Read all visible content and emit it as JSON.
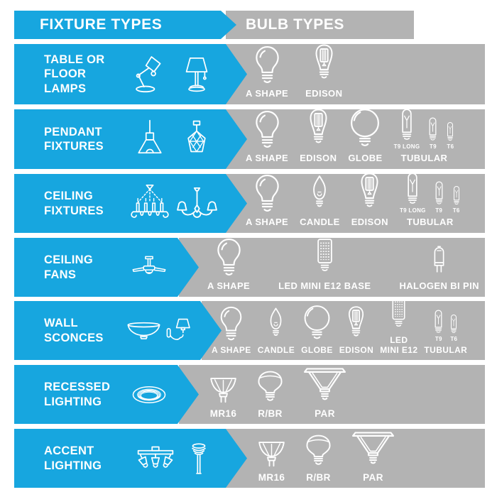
{
  "title": "Fixture types to bulb types compatibility chart",
  "colors": {
    "blue": "#17A6DF",
    "gray": "#B3B3B3",
    "text": "#FFFFFF",
    "background": "#FFFFFF"
  },
  "header": {
    "fixture_types_label": "FIXTURE TYPES",
    "bulb_types_label": "BULB TYPES"
  },
  "rows": [
    {
      "fixture": {
        "label_lines": [
          "TABLE OR",
          "FLOOR",
          "LAMPS"
        ],
        "icons": [
          "desk-lamp-icon",
          "table-lamp-icon"
        ]
      },
      "bulbs": [
        {
          "label": "A SHAPE",
          "icon": "a-shape-bulb-icon"
        },
        {
          "label": "EDISON",
          "icon": "edison-bulb-icon"
        }
      ]
    },
    {
      "fixture": {
        "label_lines": [
          "PENDANT",
          "FIXTURES"
        ],
        "icons": [
          "pendant-cone-icon",
          "pendant-geometric-icon"
        ]
      },
      "bulbs": [
        {
          "label": "A SHAPE",
          "icon": "a-shape-bulb-icon"
        },
        {
          "label": "EDISON",
          "icon": "edison-bulb-icon"
        },
        {
          "label": "GLOBE",
          "icon": "globe-bulb-icon"
        },
        {
          "label": "TUBULAR",
          "icon": "tubular-bulb-icon",
          "variants": [
            {
              "label": "T9 LONG"
            },
            {
              "label": "T9"
            },
            {
              "label": "T6"
            }
          ]
        }
      ]
    },
    {
      "fixture": {
        "label_lines": [
          "CEILING",
          "FIXTURES"
        ],
        "icons": [
          "chandelier-candle-icon",
          "chandelier-shade-icon"
        ]
      },
      "bulbs": [
        {
          "label": "A SHAPE",
          "icon": "a-shape-bulb-icon"
        },
        {
          "label": "CANDLE",
          "icon": "candle-bulb-icon"
        },
        {
          "label": "EDISON",
          "icon": "edison-bulb-icon"
        },
        {
          "label": "TUBULAR",
          "icon": "tubular-bulb-icon",
          "variants": [
            {
              "label": "T9 LONG"
            },
            {
              "label": "T9"
            },
            {
              "label": "T6"
            }
          ]
        }
      ]
    },
    {
      "fixture": {
        "label_lines": [
          "CEILING",
          "FANS"
        ],
        "icons": [
          "ceiling-fan-icon"
        ]
      },
      "bulbs": [
        {
          "label": "A SHAPE",
          "icon": "a-shape-bulb-icon"
        },
        {
          "label": "LED MINI E12 BASE",
          "icon": "led-mini-e12-bulb-icon"
        },
        {
          "label": "HALOGEN BI PIN",
          "icon": "halogen-bi-pin-bulb-icon"
        }
      ]
    },
    {
      "fixture": {
        "label_lines": [
          "WALL",
          "SCONCES"
        ],
        "icons": [
          "wall-sconce-bowl-icon",
          "wall-sconce-arm-icon"
        ]
      },
      "bulbs": [
        {
          "label": "A SHAPE",
          "icon": "a-shape-bulb-icon"
        },
        {
          "label": "CANDLE",
          "icon": "candle-bulb-icon"
        },
        {
          "label": "GLOBE",
          "icon": "globe-bulb-icon"
        },
        {
          "label": "EDISON",
          "icon": "edison-bulb-icon"
        },
        {
          "label_lines": [
            "LED",
            "MINI E12"
          ],
          "icon": "led-mini-e12-bulb-icon"
        },
        {
          "label": "TUBULAR",
          "icon": "tubular-bulb-icon",
          "variants": [
            {
              "label": "T9"
            },
            {
              "label": "T6"
            }
          ]
        }
      ]
    },
    {
      "fixture": {
        "label_lines": [
          "RECESSED",
          "LIGHTING"
        ],
        "icons": [
          "recessed-light-icon"
        ]
      },
      "bulbs": [
        {
          "label": "MR16",
          "icon": "mr16-bulb-icon"
        },
        {
          "label": "R/BR",
          "icon": "r-br-bulb-icon"
        },
        {
          "label": "PAR",
          "icon": "par-bulb-icon"
        }
      ]
    },
    {
      "fixture": {
        "label_lines": [
          "ACCENT",
          "LIGHTING"
        ],
        "icons": [
          "track-light-icon",
          "path-light-icon"
        ]
      },
      "bulbs": [
        {
          "label": "MR16",
          "icon": "mr16-bulb-icon"
        },
        {
          "label": "R/BR",
          "icon": "r-br-bulb-icon"
        },
        {
          "label": "PAR",
          "icon": "par-bulb-icon"
        }
      ]
    }
  ]
}
